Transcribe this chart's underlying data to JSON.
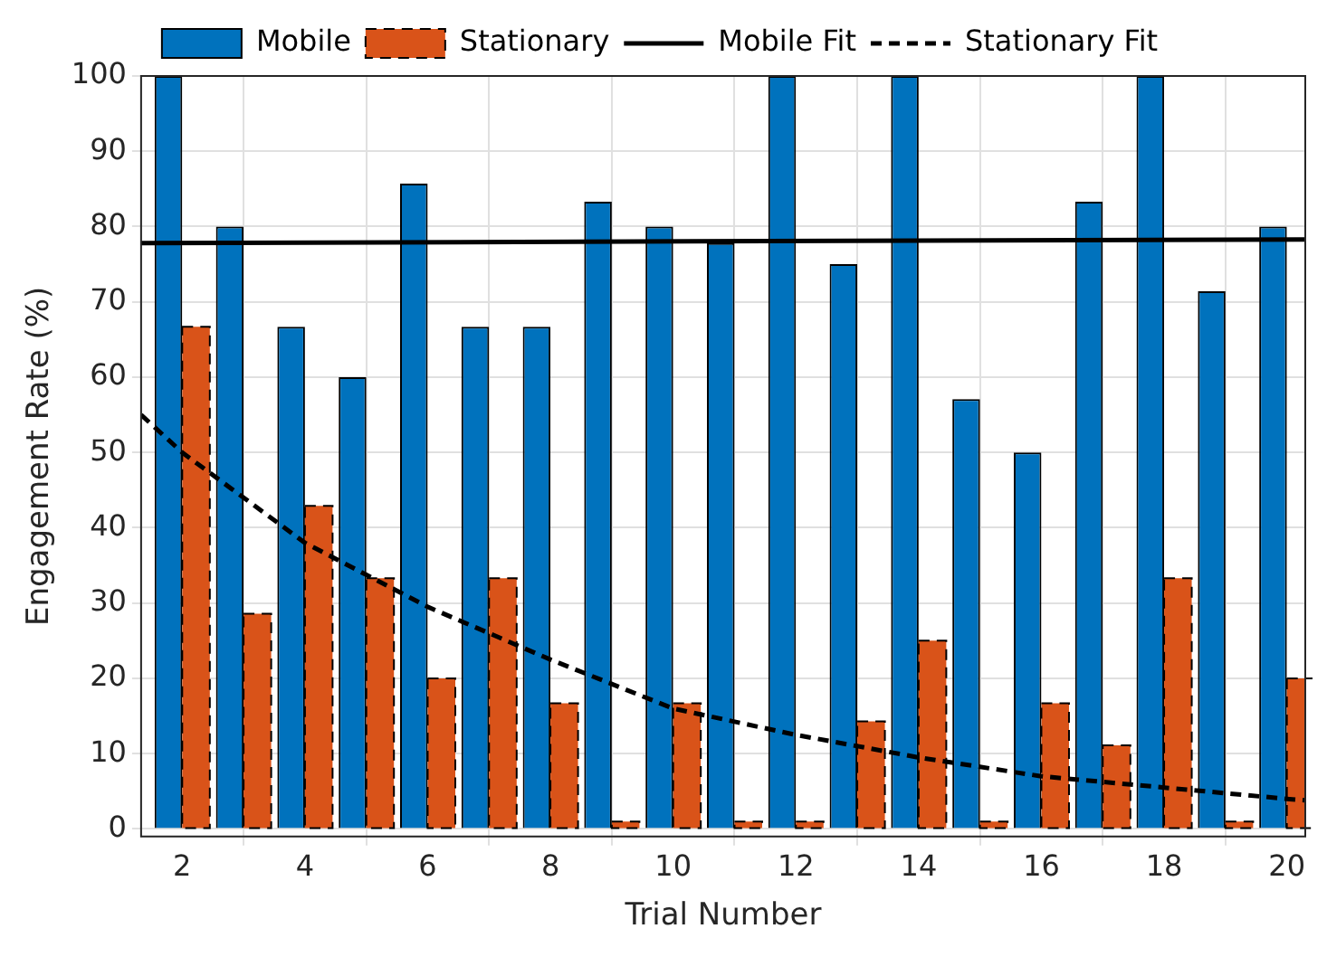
{
  "chart_data": {
    "type": "bar",
    "xlabel": "Trial Number",
    "ylabel": "Engagement Rate (%)",
    "x": [
      2,
      3,
      4,
      5,
      6,
      7,
      8,
      9,
      10,
      11,
      12,
      13,
      14,
      15,
      16,
      17,
      18,
      19,
      20
    ],
    "series": [
      {
        "name": "Mobile",
        "color": "#0072bd",
        "values": [
          100,
          80,
          66.7,
          60,
          85.7,
          66.7,
          66.7,
          83.3,
          80,
          77.8,
          100,
          75,
          100,
          57.1,
          50,
          83.3,
          100,
          71.4,
          80
        ]
      },
      {
        "name": "Stationary",
        "color": "#d95319",
        "line_style": "dashed",
        "values": [
          66.7,
          28.6,
          42.9,
          33.3,
          20,
          33.3,
          16.7,
          1,
          16.7,
          1,
          1,
          14.3,
          25,
          1,
          16.7,
          11.1,
          33.3,
          1,
          20
        ]
      },
      {
        "name": "Mobile Fit",
        "type": "line",
        "color": "#000000",
        "line_style": "solid",
        "x": [
          1.33,
          20.3
        ],
        "values": [
          77.8,
          78.3
        ]
      },
      {
        "name": "Stationary Fit",
        "type": "line",
        "color": "#000000",
        "line_style": "dashed",
        "x": [
          1.33,
          2,
          4,
          6,
          8,
          10,
          12,
          14,
          16,
          18,
          20,
          20.3
        ],
        "values": [
          55,
          50,
          38,
          29.5,
          22.5,
          16,
          12.5,
          9.5,
          7,
          5.5,
          4,
          3.8
        ]
      }
    ],
    "xlim": [
      1.33,
      20.3
    ],
    "xticks": [
      2,
      4,
      6,
      8,
      10,
      12,
      14,
      16,
      18,
      20
    ],
    "ylim": [
      -1,
      100
    ],
    "yticks": [
      0,
      10,
      20,
      30,
      40,
      50,
      60,
      70,
      80,
      90,
      100
    ],
    "grid": true,
    "legend": "top",
    "marker": "none"
  }
}
